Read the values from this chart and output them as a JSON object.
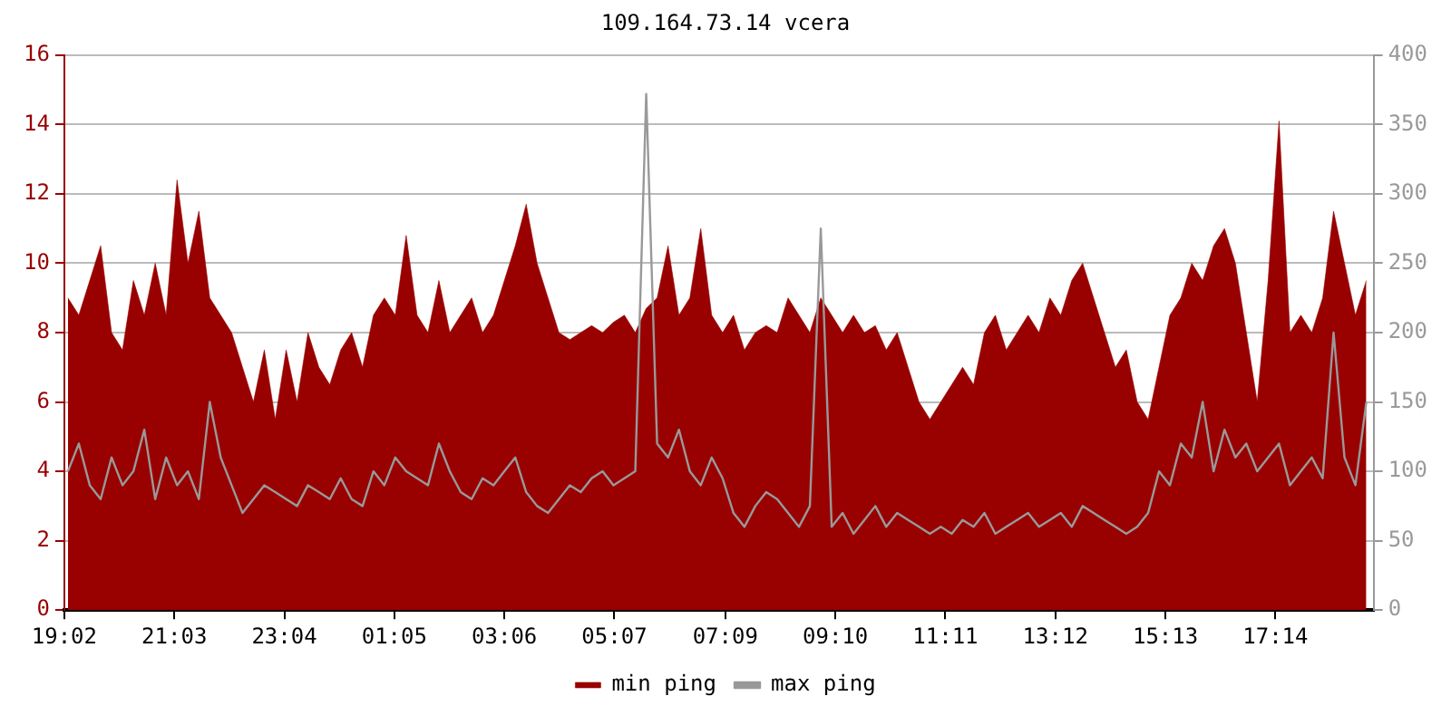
{
  "chart_data": {
    "type": "area",
    "title": "109.164.73.14 vcera",
    "x": [
      "--01-01T19:06",
      "--01-01T19:18",
      "--01-01T19:30",
      "--01-01T19:42",
      "--01-01T19:54",
      "--01-01T20:06",
      "--01-01T20:18",
      "--01-01T20:30",
      "--01-01T20:42",
      "--01-01T20:54",
      "--01-01T21:06",
      "--01-01T21:18",
      "--01-01T21:30",
      "--01-01T21:42",
      "--01-01T21:54",
      "--01-01T22:06",
      "--01-01T22:18",
      "--01-01T22:30",
      "--01-01T22:42",
      "--01-01T22:54",
      "--01-01T23:06",
      "--01-01T23:18",
      "--01-01T23:30",
      "--01-01T23:42",
      "--01-01T23:54",
      "--01-02T00:06",
      "--01-02T00:18",
      "--01-02T00:30",
      "--01-02T00:42",
      "--01-02T00:54",
      "--01-02T01:06",
      "--01-02T01:18",
      "--01-02T01:30",
      "--01-02T01:42",
      "--01-02T01:54",
      "--01-02T02:06",
      "--01-02T02:18",
      "--01-02T02:30",
      "--01-02T02:42",
      "--01-02T02:54",
      "--01-02T03:06",
      "--01-02T03:18",
      "--01-02T03:30",
      "--01-02T03:42",
      "--01-02T03:54",
      "--01-02T04:06",
      "--01-02T04:18",
      "--01-02T04:30",
      "--01-02T04:42",
      "--01-02T04:54",
      "--01-02T05:06",
      "--01-02T05:18",
      "--01-02T05:30",
      "--01-02T05:42",
      "--01-02T05:54",
      "--01-02T06:06",
      "--01-02T06:18",
      "--01-02T06:30",
      "--01-02T06:42",
      "--01-02T06:54",
      "--01-02T07:06",
      "--01-02T07:18",
      "--01-02T07:30",
      "--01-02T07:42",
      "--01-02T07:54",
      "--01-02T08:06",
      "--01-02T08:18",
      "--01-02T08:30",
      "--01-02T08:42",
      "--01-02T08:54",
      "--01-02T09:06",
      "--01-02T09:18",
      "--01-02T09:30",
      "--01-02T09:42",
      "--01-02T09:54",
      "--01-02T10:06",
      "--01-02T10:18",
      "--01-02T10:30",
      "--01-02T10:42",
      "--01-02T10:54",
      "--01-02T11:06",
      "--01-02T11:18",
      "--01-02T11:30",
      "--01-02T11:42",
      "--01-02T11:54",
      "--01-02T12:06",
      "--01-02T12:18",
      "--01-02T12:30",
      "--01-02T12:42",
      "--01-02T12:54",
      "--01-02T13:06",
      "--01-02T13:18",
      "--01-02T13:30",
      "--01-02T13:42",
      "--01-02T13:54",
      "--01-02T14:06",
      "--01-02T14:18",
      "--01-02T14:30",
      "--01-02T14:42",
      "--01-02T14:54",
      "--01-02T15:06",
      "--01-02T15:18",
      "--01-02T15:30",
      "--01-02T15:42",
      "--01-02T15:54",
      "--01-02T16:06",
      "--01-02T16:18",
      "--01-02T16:30",
      "--01-02T16:42",
      "--01-02T16:54",
      "--01-02T17:06",
      "--01-02T17:18",
      "--01-02T17:30",
      "--01-02T17:42",
      "--01-02T17:54",
      "--01-02T18:06",
      "--01-02T18:18",
      "--01-02T18:30",
      "--01-02T18:42",
      "--01-02T18:54"
    ],
    "series": [
      {
        "name": "min ping",
        "color": "#990000",
        "values": [
          9,
          8.5,
          9.5,
          10.5,
          8,
          7.5,
          9.5,
          8.5,
          10,
          8.5,
          12.4,
          10,
          11.5,
          9,
          8.5,
          8,
          7,
          6,
          7.5,
          5.5,
          7.5,
          6,
          8,
          7,
          6.5,
          7.5,
          8,
          7,
          8.5,
          9,
          8.5,
          10.8,
          8.5,
          8,
          9.5,
          8,
          8.5,
          9,
          8,
          8.5,
          9.5,
          10.5,
          11.7,
          10,
          9,
          8,
          7.8,
          8,
          8.2,
          8,
          8.3,
          8.5,
          8,
          8.7,
          9,
          10.5,
          8.5,
          9,
          11,
          8.5,
          8,
          8.5,
          7.5,
          8,
          8.2,
          8,
          9,
          8.5,
          8,
          9,
          8.5,
          8,
          8.5,
          8,
          8.2,
          7.5,
          8,
          7,
          6,
          5.5,
          6,
          6.5,
          7,
          6.5,
          8,
          8.5,
          7.5,
          8,
          8.5,
          8,
          9,
          8.5,
          9.5,
          10,
          9,
          8,
          7,
          7.5,
          6,
          5.5,
          7,
          8.5,
          9,
          10,
          9.5,
          10.5,
          11,
          10,
          8,
          6,
          9.5,
          14.1,
          8,
          8.5,
          8,
          9,
          11.5,
          10,
          8.5,
          9.5
        ]
      },
      {
        "name": "max ping",
        "type": "line",
        "axis": "y2",
        "color": "#999999",
        "values": [
          100,
          120,
          90,
          80,
          110,
          90,
          100,
          130,
          80,
          110,
          90,
          100,
          80,
          150,
          110,
          90,
          70,
          80,
          90,
          85,
          80,
          75,
          90,
          85,
          80,
          95,
          80,
          75,
          100,
          90,
          110,
          100,
          95,
          90,
          120,
          100,
          85,
          80,
          95,
          90,
          100,
          110,
          85,
          75,
          70,
          80,
          90,
          85,
          95,
          100,
          90,
          95,
          100,
          372,
          120,
          110,
          130,
          100,
          90,
          110,
          95,
          70,
          60,
          75,
          85,
          80,
          70,
          60,
          75,
          275,
          60,
          70,
          55,
          65,
          75,
          60,
          70,
          65,
          60,
          55,
          60,
          55,
          65,
          60,
          70,
          55,
          60,
          65,
          70,
          60,
          65,
          70,
          60,
          75,
          70,
          65,
          60,
          55,
          60,
          70,
          100,
          90,
          120,
          110,
          150,
          100,
          130,
          110,
          120,
          100,
          110,
          120,
          90,
          100,
          110,
          95,
          200,
          110,
          90,
          150
        ]
      }
    ],
    "xlim": [
      "--01-01T19:02",
      "--01-02T19:02"
    ],
    "xticks": [
      {
        "value": "--01-01T19:02",
        "label": "19:02"
      },
      {
        "value": "--01-01T21:03",
        "label": "21:03"
      },
      {
        "value": "--01-01T23:04",
        "label": "23:04"
      },
      {
        "value": "--01-02T01:05",
        "label": "01:05"
      },
      {
        "value": "--01-02T03:06",
        "label": "03:06"
      },
      {
        "value": "--01-02T05:07",
        "label": "05:07"
      },
      {
        "value": "--01-02T07:09",
        "label": "07:09"
      },
      {
        "value": "--01-02T09:10",
        "label": "09:10"
      },
      {
        "value": "--01-02T11:11",
        "label": "11:11"
      },
      {
        "value": "--01-02T13:12",
        "label": "13:12"
      },
      {
        "value": "--01-02T15:13",
        "label": "15:13"
      },
      {
        "value": "--01-02T17:14",
        "label": "17:14"
      }
    ],
    "ylim": [
      0,
      16
    ],
    "yticks": [
      0,
      2,
      4,
      6,
      8,
      10,
      12,
      14,
      16
    ],
    "y2lim": [
      0,
      400
    ],
    "y2ticks": [
      0,
      50,
      100,
      150,
      200,
      250,
      300,
      350,
      400
    ],
    "grid": "y",
    "legend": "bottom",
    "marker": "none",
    "line_style": "solid"
  }
}
